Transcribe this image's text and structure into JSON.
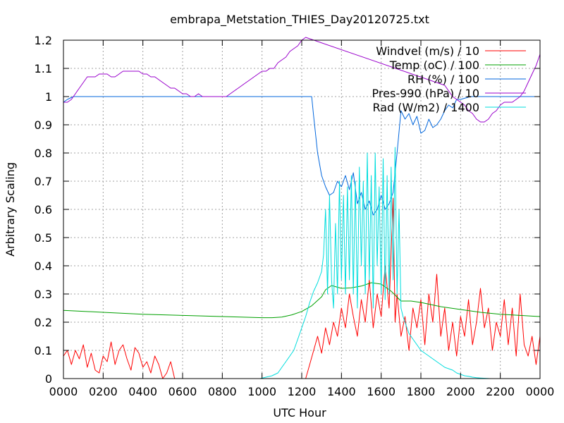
{
  "chart_data": {
    "type": "line",
    "title": "embrapa_Metstation_THIES_Day20120725.txt",
    "xlabel": "UTC Hour",
    "ylabel": "Arbitrary Scaling",
    "xlim": [
      0,
      24
    ],
    "ylim": [
      0,
      1.2
    ],
    "grid": true,
    "legend_position": "top-right",
    "x_ticks": [
      {
        "v": 0,
        "label": "0000"
      },
      {
        "v": 2,
        "label": "0200"
      },
      {
        "v": 4,
        "label": "0400"
      },
      {
        "v": 6,
        "label": "0600"
      },
      {
        "v": 8,
        "label": "0800"
      },
      {
        "v": 10,
        "label": "1000"
      },
      {
        "v": 12,
        "label": "1200"
      },
      {
        "v": 14,
        "label": "1400"
      },
      {
        "v": 16,
        "label": "1600"
      },
      {
        "v": 18,
        "label": "1800"
      },
      {
        "v": 20,
        "label": "2000"
      },
      {
        "v": 22,
        "label": "2200"
      },
      {
        "v": 24,
        "label": "0000"
      }
    ],
    "y_ticks": [
      {
        "v": 0,
        "label": "0"
      },
      {
        "v": 0.1,
        "label": "0.1"
      },
      {
        "v": 0.2,
        "label": "0.2"
      },
      {
        "v": 0.3,
        "label": "0.3"
      },
      {
        "v": 0.4,
        "label": "0.4"
      },
      {
        "v": 0.5,
        "label": "0.5"
      },
      {
        "v": 0.6,
        "label": "0.6"
      },
      {
        "v": 0.7,
        "label": "0.7"
      },
      {
        "v": 0.8,
        "label": "0.8"
      },
      {
        "v": 0.9,
        "label": "0.9"
      },
      {
        "v": 1.0,
        "label": "1"
      },
      {
        "v": 1.1,
        "label": "1.1"
      },
      {
        "v": 1.2,
        "label": "1.2"
      }
    ],
    "series": [
      {
        "name": "Windvel (m/s) / 10",
        "color": "#ff0000",
        "x": [
          0,
          0.2,
          0.4,
          0.6,
          0.8,
          1.0,
          1.2,
          1.4,
          1.6,
          1.8,
          2.0,
          2.2,
          2.4,
          2.6,
          2.8,
          3.0,
          3.2,
          3.4,
          3.6,
          3.8,
          4.0,
          4.2,
          4.4,
          4.6,
          4.8,
          5.0,
          5.2,
          5.4,
          5.6,
          5.8,
          6.0,
          7.0,
          8.0,
          9.0,
          10.0,
          11.0,
          11.8,
          12.0,
          12.2,
          12.4,
          12.6,
          12.8,
          13.0,
          13.2,
          13.4,
          13.6,
          13.8,
          14.0,
          14.2,
          14.4,
          14.6,
          14.8,
          15.0,
          15.2,
          15.4,
          15.6,
          15.8,
          16.0,
          16.2,
          16.4,
          16.6,
          16.7,
          16.8,
          17.0,
          17.2,
          17.4,
          17.6,
          17.8,
          18.0,
          18.2,
          18.4,
          18.6,
          18.8,
          19.0,
          19.2,
          19.4,
          19.6,
          19.8,
          20.0,
          20.2,
          20.4,
          20.6,
          20.8,
          21.0,
          21.2,
          21.4,
          21.6,
          21.8,
          22.0,
          22.2,
          22.4,
          22.6,
          22.8,
          23.0,
          23.2,
          23.4,
          23.6,
          23.8,
          24.0
        ],
        "y": [
          0.08,
          0.1,
          0.05,
          0.1,
          0.07,
          0.12,
          0.04,
          0.09,
          0.03,
          0.02,
          0.08,
          0.06,
          0.13,
          0.05,
          0.1,
          0.12,
          0.07,
          0.03,
          0.11,
          0.09,
          0.04,
          0.06,
          0.02,
          0.08,
          0.05,
          0.0,
          0.02,
          0.06,
          0.0,
          0.0,
          0.0,
          0.0,
          0.0,
          0.0,
          0.0,
          0.0,
          0.0,
          0.0,
          0.0,
          0.05,
          0.1,
          0.15,
          0.09,
          0.18,
          0.12,
          0.2,
          0.15,
          0.25,
          0.18,
          0.3,
          0.22,
          0.15,
          0.28,
          0.2,
          0.35,
          0.18,
          0.3,
          0.22,
          0.4,
          0.25,
          0.64,
          0.2,
          0.3,
          0.15,
          0.22,
          0.1,
          0.25,
          0.18,
          0.28,
          0.12,
          0.3,
          0.2,
          0.37,
          0.15,
          0.25,
          0.1,
          0.2,
          0.08,
          0.22,
          0.15,
          0.28,
          0.12,
          0.2,
          0.32,
          0.18,
          0.25,
          0.1,
          0.2,
          0.15,
          0.28,
          0.12,
          0.25,
          0.08,
          0.3,
          0.12,
          0.08,
          0.15,
          0.05,
          0.15
        ]
      },
      {
        "name": "Temp (oC) / 100",
        "color": "#00a000",
        "x": [
          0,
          2,
          4,
          6,
          8,
          10,
          10.5,
          11,
          11.5,
          12,
          12.5,
          13,
          13.2,
          13.5,
          14,
          14.5,
          15,
          15.5,
          16,
          16.5,
          17,
          17.5,
          18,
          19,
          20,
          21,
          22,
          23,
          24
        ],
        "y": [
          0.242,
          0.235,
          0.228,
          0.224,
          0.22,
          0.216,
          0.216,
          0.218,
          0.226,
          0.238,
          0.258,
          0.29,
          0.315,
          0.33,
          0.32,
          0.322,
          0.328,
          0.34,
          0.335,
          0.31,
          0.275,
          0.275,
          0.27,
          0.255,
          0.245,
          0.235,
          0.228,
          0.224,
          0.22
        ]
      },
      {
        "name": "RH (%) / 100",
        "color": "#0066dd",
        "x": [
          0,
          0.2,
          0.5,
          0.8,
          1.0,
          2,
          4,
          6,
          8,
          10,
          11,
          12,
          12.3,
          12.5,
          12.6,
          12.8,
          13.0,
          13.2,
          13.4,
          13.6,
          13.8,
          14.0,
          14.2,
          14.4,
          14.6,
          14.8,
          15.0,
          15.2,
          15.4,
          15.6,
          15.8,
          16.0,
          16.2,
          16.4,
          16.6,
          16.8,
          17.0,
          17.2,
          17.4,
          17.6,
          17.8,
          18.0,
          18.2,
          18.4,
          18.6,
          18.8,
          19.0,
          19.2,
          19.4,
          19.6,
          19.8,
          20.0,
          20.5,
          21.0,
          22,
          23,
          24
        ],
        "y": [
          0.98,
          0.99,
          1.0,
          1.0,
          1.0,
          1.0,
          1.0,
          1.0,
          1.0,
          1.0,
          1.0,
          1.0,
          1.0,
          1.0,
          0.93,
          0.8,
          0.72,
          0.68,
          0.65,
          0.66,
          0.7,
          0.68,
          0.72,
          0.67,
          0.73,
          0.62,
          0.66,
          0.6,
          0.63,
          0.58,
          0.6,
          0.65,
          0.6,
          0.62,
          0.66,
          0.8,
          0.95,
          0.92,
          0.94,
          0.9,
          0.93,
          0.87,
          0.88,
          0.92,
          0.89,
          0.9,
          0.92,
          0.95,
          0.97,
          0.96,
          0.99,
          0.99,
          1.0,
          1.0,
          1.0,
          1.0,
          1.0
        ]
      },
      {
        "name": "Pres-990 (hPa) / 10",
        "color": "#9900cc",
        "x": [
          0,
          0.2,
          0.4,
          0.6,
          0.8,
          1.0,
          1.2,
          1.4,
          1.6,
          1.8,
          2.0,
          2.2,
          2.4,
          2.6,
          2.8,
          3.0,
          3.2,
          3.4,
          3.6,
          3.8,
          4.0,
          4.2,
          4.4,
          4.6,
          4.8,
          5.0,
          5.2,
          5.4,
          5.6,
          5.8,
          6.0,
          6.2,
          6.4,
          6.6,
          6.8,
          7.0,
          7.2,
          7.4,
          7.6,
          7.8,
          8.0,
          8.2,
          8.4,
          8.6,
          8.8,
          9.0,
          9.2,
          9.4,
          9.6,
          9.8,
          10.0,
          10.2,
          10.4,
          10.6,
          10.8,
          11.0,
          11.2,
          11.4,
          11.6,
          11.8,
          12.0,
          12.2,
          19.2,
          19.4,
          19.6,
          19.8,
          20.0,
          20.2,
          20.4,
          20.6,
          20.8,
          21.0,
          21.2,
          21.4,
          21.6,
          21.8,
          22.0,
          22.2,
          22.4,
          22.6,
          22.8,
          23.0,
          23.2,
          23.4,
          23.6,
          23.8,
          24.0
        ],
        "y": [
          0.98,
          0.98,
          0.99,
          1.01,
          1.03,
          1.05,
          1.07,
          1.07,
          1.07,
          1.08,
          1.08,
          1.08,
          1.07,
          1.07,
          1.08,
          1.09,
          1.09,
          1.09,
          1.09,
          1.09,
          1.08,
          1.08,
          1.07,
          1.07,
          1.06,
          1.05,
          1.04,
          1.03,
          1.03,
          1.02,
          1.01,
          1.01,
          1.0,
          1.0,
          1.01,
          1.0,
          1.0,
          1.0,
          1.0,
          1.0,
          1.0,
          1.0,
          1.01,
          1.02,
          1.03,
          1.04,
          1.05,
          1.06,
          1.07,
          1.08,
          1.09,
          1.09,
          1.1,
          1.1,
          1.12,
          1.13,
          1.14,
          1.16,
          1.17,
          1.18,
          1.2,
          1.21,
          1.04,
          1.02,
          1.0,
          0.99,
          0.98,
          0.97,
          0.95,
          0.94,
          0.92,
          0.91,
          0.91,
          0.92,
          0.94,
          0.95,
          0.97,
          0.98,
          0.98,
          0.98,
          0.99,
          1.0,
          1.02,
          1.05,
          1.08,
          1.11,
          1.15
        ]
      },
      {
        "name": "Rad (W/m2) / 1400",
        "color": "#00dddd",
        "x": [
          0,
          9.9,
          10.2,
          10.5,
          10.8,
          11.0,
          11.2,
          11.4,
          11.6,
          11.8,
          12.0,
          12.2,
          12.4,
          12.6,
          12.8,
          13.0,
          13.1,
          13.2,
          13.3,
          13.4,
          13.5,
          13.6,
          13.7,
          13.8,
          13.9,
          14.0,
          14.1,
          14.2,
          14.3,
          14.4,
          14.5,
          14.6,
          14.7,
          14.8,
          14.9,
          15.0,
          15.1,
          15.2,
          15.3,
          15.4,
          15.5,
          15.6,
          15.7,
          15.8,
          15.9,
          16.0,
          16.1,
          16.2,
          16.3,
          16.4,
          16.5,
          16.6,
          16.7,
          16.8,
          16.9,
          17.0,
          17.1,
          17.2,
          17.3,
          17.4,
          17.6,
          17.8,
          18.0,
          18.2,
          18.4,
          18.6,
          18.8,
          19.0,
          19.2,
          19.4,
          19.6,
          19.8,
          20.0,
          20.2,
          20.4,
          20.6,
          20.8,
          21.0,
          21.5,
          22.0,
          24.0
        ],
        "y": [
          0,
          0,
          0.005,
          0.01,
          0.02,
          0.04,
          0.06,
          0.08,
          0.1,
          0.14,
          0.18,
          0.22,
          0.27,
          0.31,
          0.34,
          0.38,
          0.44,
          0.6,
          0.3,
          0.65,
          0.35,
          0.25,
          0.55,
          0.3,
          0.7,
          0.35,
          0.65,
          0.3,
          0.68,
          0.35,
          0.72,
          0.3,
          0.7,
          0.25,
          0.75,
          0.4,
          0.7,
          0.3,
          0.8,
          0.35,
          0.72,
          0.25,
          0.8,
          0.4,
          0.68,
          0.3,
          0.78,
          0.28,
          0.72,
          0.3,
          0.75,
          0.35,
          0.82,
          0.3,
          0.6,
          0.25,
          0.22,
          0.2,
          0.18,
          0.16,
          0.14,
          0.12,
          0.1,
          0.09,
          0.08,
          0.07,
          0.06,
          0.05,
          0.04,
          0.035,
          0.03,
          0.02,
          0.015,
          0.01,
          0.008,
          0.005,
          0.003,
          0.002,
          0,
          0,
          0
        ]
      }
    ]
  }
}
